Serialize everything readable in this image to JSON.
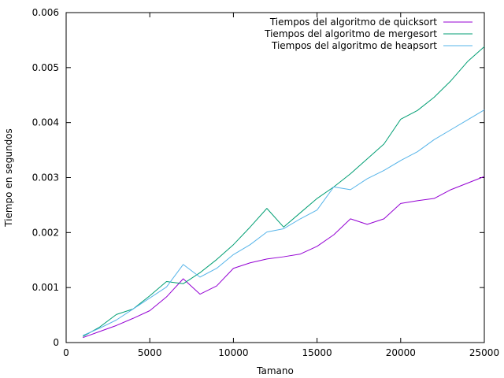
{
  "chart_data": {
    "type": "line",
    "xlabel": "Tamano",
    "ylabel": "Tiempo en segundos",
    "xlim": [
      0,
      25000
    ],
    "ylim": [
      0,
      0.006
    ],
    "x_ticks": [
      0,
      5000,
      10000,
      15000,
      20000,
      25000
    ],
    "x_tick_labels": [
      "0",
      "5000",
      "10000",
      "15000",
      "20000",
      "25000"
    ],
    "y_ticks": [
      0,
      0.001,
      0.002,
      0.003,
      0.004,
      0.005,
      0.006
    ],
    "y_tick_labels": [
      "0",
      "0.001",
      "0.002",
      "0.003",
      "0.004",
      "0.005",
      "0.006"
    ],
    "grid": false,
    "legend_position": "top-right",
    "x": [
      1000,
      2000,
      3000,
      4000,
      5000,
      6000,
      7000,
      8000,
      9000,
      10000,
      11000,
      12000,
      13000,
      14000,
      15000,
      16000,
      17000,
      18000,
      19000,
      20000,
      21000,
      22000,
      23000,
      24000,
      25000
    ],
    "series": [
      {
        "name": "Tiempos del algoritmo de quicksort",
        "color": "#9400d3",
        "values": [
          9e-05,
          0.0002,
          0.00031,
          0.00044,
          0.00058,
          0.00083,
          0.00116,
          0.00088,
          0.00103,
          0.00135,
          0.00145,
          0.00152,
          0.00156,
          0.00161,
          0.00175,
          0.00196,
          0.00225,
          0.00215,
          0.00225,
          0.00253,
          0.00258,
          0.00262,
          0.00278,
          0.0029,
          0.00302
        ]
      },
      {
        "name": "Tiempos del algoritmo de mergesort",
        "color": "#009e73",
        "values": [
          0.00011,
          0.00028,
          0.00051,
          0.00061,
          0.00085,
          0.00111,
          0.00107,
          0.00127,
          0.00151,
          0.00178,
          0.0021,
          0.00244,
          0.0021,
          0.00236,
          0.00262,
          0.00283,
          0.00307,
          0.00334,
          0.00361,
          0.00406,
          0.00422,
          0.00446,
          0.00476,
          0.00511,
          0.00538
        ]
      },
      {
        "name": "Tiempos del algoritmo de heapsort",
        "color": "#56b4e9",
        "values": [
          0.00013,
          0.00026,
          0.00041,
          0.00061,
          0.00081,
          0.00101,
          0.00142,
          0.00119,
          0.00135,
          0.0016,
          0.00178,
          0.00201,
          0.00207,
          0.00225,
          0.00241,
          0.00283,
          0.00278,
          0.00298,
          0.00313,
          0.00331,
          0.00347,
          0.00369,
          0.00387,
          0.00405,
          0.00423
        ]
      }
    ]
  }
}
